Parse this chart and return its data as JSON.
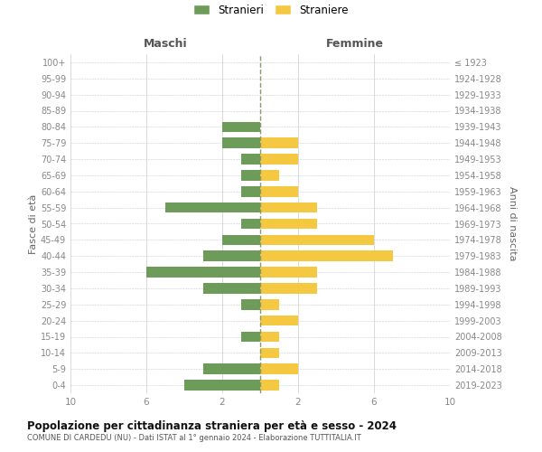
{
  "age_groups": [
    "0-4",
    "5-9",
    "10-14",
    "15-19",
    "20-24",
    "25-29",
    "30-34",
    "35-39",
    "40-44",
    "45-49",
    "50-54",
    "55-59",
    "60-64",
    "65-69",
    "70-74",
    "75-79",
    "80-84",
    "85-89",
    "90-94",
    "95-99",
    "100+"
  ],
  "birth_years": [
    "2019-2023",
    "2014-2018",
    "2009-2013",
    "2004-2008",
    "1999-2003",
    "1994-1998",
    "1989-1993",
    "1984-1988",
    "1979-1983",
    "1974-1978",
    "1969-1973",
    "1964-1968",
    "1959-1963",
    "1954-1958",
    "1949-1953",
    "1944-1948",
    "1939-1943",
    "1934-1938",
    "1929-1933",
    "1924-1928",
    "≤ 1923"
  ],
  "maschi": [
    4,
    3,
    0,
    1,
    0,
    1,
    3,
    6,
    3,
    2,
    1,
    5,
    1,
    1,
    1,
    2,
    2,
    0,
    0,
    0,
    0
  ],
  "femmine": [
    1,
    2,
    1,
    1,
    2,
    1,
    3,
    3,
    7,
    6,
    3,
    3,
    2,
    1,
    2,
    2,
    0,
    0,
    0,
    0,
    0
  ],
  "color_maschi": "#6d9b5a",
  "color_femmine": "#f5c842",
  "title": "Popolazione per cittadinanza straniera per età e sesso - 2024",
  "subtitle": "COMUNE DI CARDEDU (NU) - Dati ISTAT al 1° gennaio 2024 - Elaborazione TUTTITALIA.IT",
  "xlabel_left": "Maschi",
  "xlabel_right": "Femmine",
  "ylabel_left": "Fasce di età",
  "ylabel_right": "Anni di nascita",
  "legend_maschi": "Stranieri",
  "legend_femmine": "Straniere",
  "xlim": 10,
  "background_color": "#ffffff",
  "grid_color": "#cccccc",
  "dashed_line_color": "#8a9a6a"
}
